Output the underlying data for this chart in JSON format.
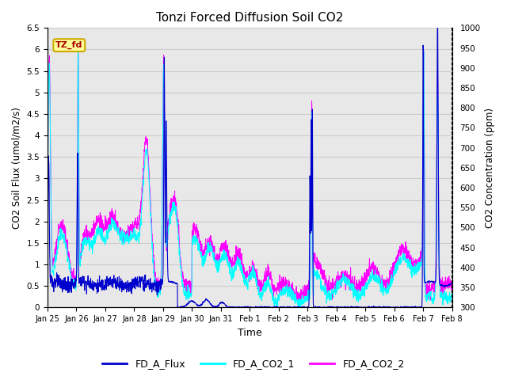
{
  "title": "Tonzi Forced Diffusion Soil CO2",
  "xlabel": "Time",
  "ylabel_left": "CO2 Soil Flux (umol/m2/s)",
  "ylabel_right": "CO2 Concentration (ppm)",
  "ylim_left": [
    0,
    6.5
  ],
  "ylim_right": [
    300,
    1000
  ],
  "yticks_left": [
    0.0,
    0.5,
    1.0,
    1.5,
    2.0,
    2.5,
    3.0,
    3.5,
    4.0,
    4.5,
    5.0,
    5.5,
    6.0,
    6.5
  ],
  "yticks_right": [
    300,
    350,
    400,
    450,
    500,
    550,
    600,
    650,
    700,
    750,
    800,
    850,
    900,
    950,
    1000
  ],
  "flux_color": "#0000CD",
  "co2_1_color": "#00FFFF",
  "co2_2_color": "#FF00FF",
  "tag_text": "TZ_fd",
  "tag_bg": "#FFFF99",
  "tag_border": "#CCAA00",
  "tag_text_color": "#AA0000",
  "legend_entries": [
    "FD_A_Flux",
    "FD_A_CO2_1",
    "FD_A_CO2_2"
  ],
  "grid_color": "#cccccc",
  "bg_color": "#e8e8e8",
  "right_axis_style": "dotted",
  "day_labels": [
    "Jan 25",
    "Jan 26",
    "Jan 27",
    "Jan 28",
    "Jan 29",
    "Jan 30",
    "Jan 31",
    "Feb 1",
    "Feb 2",
    "Feb 3",
    "Feb 4",
    "Feb 5",
    "Feb 6",
    "Feb 7",
    "Feb 8"
  ]
}
